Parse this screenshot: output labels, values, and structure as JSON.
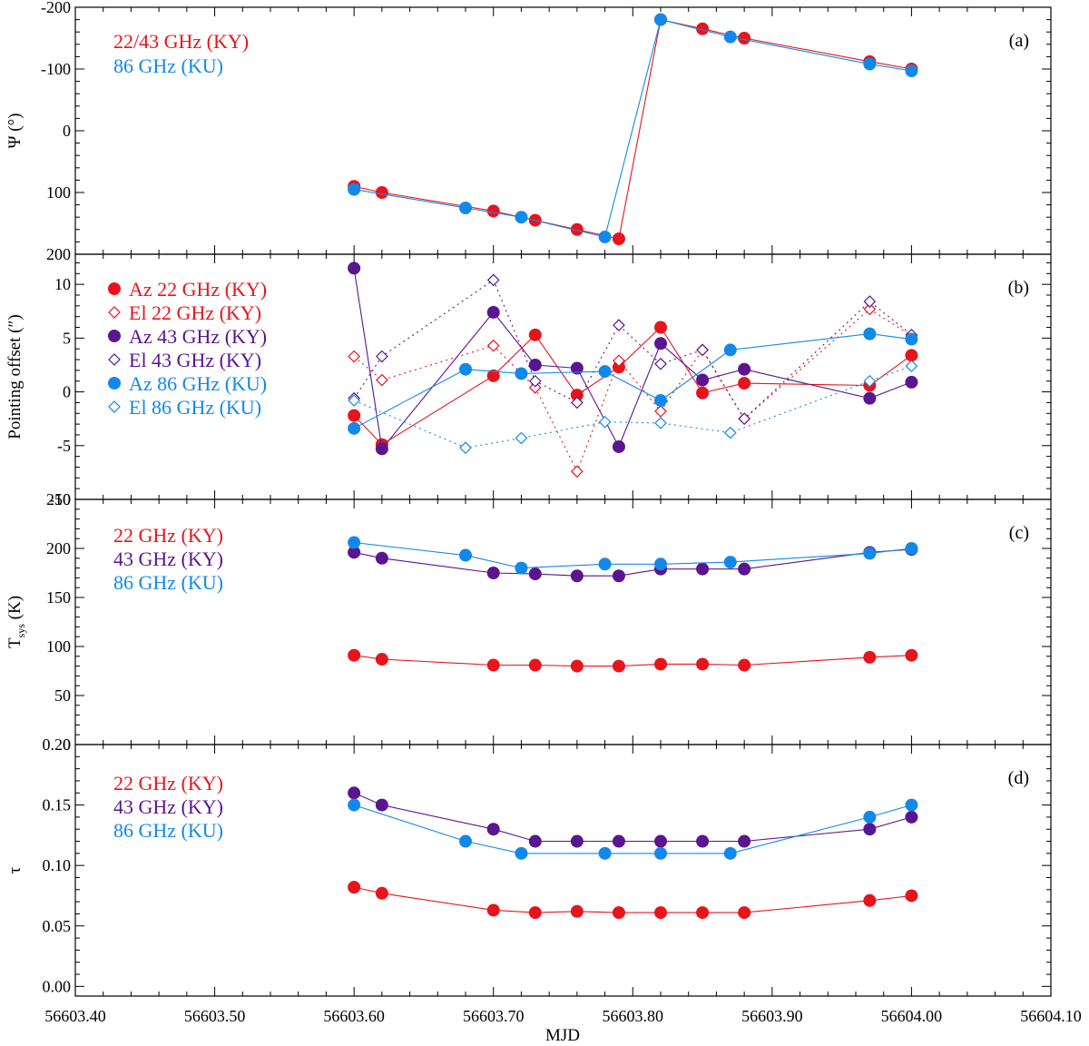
{
  "xaxis": {
    "label": "MJD",
    "ticks": [
      "56603.40",
      "56603.50",
      "56603.60",
      "56603.70",
      "56603.80",
      "56603.90",
      "56604.00",
      "56604.10"
    ],
    "range": [
      56603.4,
      56604.1
    ]
  },
  "chart_data": [
    {
      "type": "line",
      "panel_label": "(a)",
      "ylabel": "Ψ (°)",
      "ylim": [
        -200,
        200
      ],
      "y_inverted": true,
      "yticks": [
        -200,
        -100,
        0,
        100,
        200
      ],
      "ytick_labels": [
        "-200",
        "-100",
        "0",
        "100",
        "200"
      ],
      "legend": [
        "22/43 GHz (KY)",
        "86 GHz (KU)"
      ],
      "series": [
        {
          "name": "22/43 GHz (KY)",
          "color": "#e8141c",
          "marker": "filled-circle",
          "dashed": false,
          "x": [
            56603.6,
            56603.62,
            56603.7,
            56603.73,
            56603.76,
            56603.79,
            56603.82,
            56603.85,
            56603.88,
            56603.97,
            56604.0
          ],
          "y": [
            90,
            100,
            130,
            145,
            160,
            175,
            -180,
            -165,
            -150,
            -112,
            -100
          ]
        },
        {
          "name": "86 GHz (KU)",
          "color": "#1289ea",
          "marker": "filled-circle",
          "dashed": false,
          "x": [
            56603.6,
            56603.68,
            56603.72,
            56603.78,
            56603.82,
            56603.87,
            56603.97,
            56604.0
          ],
          "y": [
            95,
            125,
            140,
            172,
            -180,
            -152,
            -108,
            -97
          ]
        }
      ]
    },
    {
      "type": "line",
      "panel_label": "(b)",
      "ylabel": "Pointing offset (″)",
      "ylim": [
        -10,
        12.8
      ],
      "yticks": [
        -10,
        -5,
        0,
        5,
        10
      ],
      "ytick_labels": [
        "-10",
        "-5",
        "0",
        "5",
        "10"
      ],
      "legend": [
        "Az 22 GHz (KY)",
        "El 22 GHz (KY)",
        "Az 43 GHz (KY)",
        "El 43 GHz (KY)",
        "Az 86 GHz (KU)",
        "El 86 GHz (KU)"
      ],
      "series": [
        {
          "name": "Az 22 GHz (KY)",
          "color": "#e8141c",
          "marker": "filled-circle",
          "dashed": false,
          "x": [
            56603.6,
            56603.62,
            56603.7,
            56603.73,
            56603.76,
            56603.79,
            56603.82,
            56603.85,
            56603.88,
            56603.97,
            56604.0
          ],
          "y": [
            -2.2,
            -4.9,
            1.5,
            5.3,
            -0.3,
            2.3,
            6.0,
            -0.1,
            0.8,
            0.6,
            3.4
          ]
        },
        {
          "name": "El 22 GHz (KY)",
          "color": "#e8141c",
          "marker": "open-diamond",
          "dashed": true,
          "x": [
            56603.6,
            56603.62,
            56603.7,
            56603.73,
            56603.76,
            56603.79,
            56603.82,
            56603.85,
            56603.88,
            56603.97,
            56604.0
          ],
          "y": [
            3.3,
            1.1,
            4.3,
            0.4,
            -7.4,
            2.9,
            -1.8,
            3.9,
            -2.5,
            7.7,
            5.2
          ]
        },
        {
          "name": "Az 43 GHz (KY)",
          "color": "#5a1590",
          "marker": "filled-circle",
          "dashed": false,
          "x": [
            56603.6,
            56603.62,
            56603.7,
            56603.73,
            56603.76,
            56603.79,
            56603.82,
            56603.85,
            56603.88,
            56603.97,
            56604.0
          ],
          "y": [
            11.5,
            -5.3,
            7.4,
            2.5,
            2.2,
            -5.1,
            4.5,
            1.1,
            2.1,
            -0.6,
            0.9
          ]
        },
        {
          "name": "El 43 GHz (KY)",
          "color": "#5a1590",
          "marker": "open-diamond",
          "dashed": true,
          "x": [
            56603.6,
            56603.62,
            56603.7,
            56603.73,
            56603.76,
            56603.79,
            56603.82,
            56603.85,
            56603.88,
            56603.97,
            56604.0
          ],
          "y": [
            -0.6,
            3.3,
            10.4,
            1.0,
            -1.0,
            6.2,
            2.6,
            3.9,
            -2.5,
            8.4,
            5.3
          ]
        },
        {
          "name": "Az 86 GHz (KU)",
          "color": "#1289ea",
          "marker": "filled-circle",
          "dashed": false,
          "x": [
            56603.6,
            56603.68,
            56603.72,
            56603.78,
            56603.82,
            56603.87,
            56603.97,
            56604.0
          ],
          "y": [
            -3.4,
            2.1,
            1.7,
            1.9,
            -0.8,
            3.9,
            5.4,
            4.9
          ]
        },
        {
          "name": "El 86 GHz (KU)",
          "color": "#1289ea",
          "marker": "open-diamond",
          "dashed": true,
          "x": [
            56603.6,
            56603.68,
            56603.72,
            56603.78,
            56603.82,
            56603.87,
            56603.97,
            56604.0
          ],
          "y": [
            -0.8,
            -5.2,
            -4.3,
            -2.8,
            -2.9,
            -3.8,
            1.0,
            2.4
          ]
        }
      ]
    },
    {
      "type": "line",
      "panel_label": "(c)",
      "ylabel": "T",
      "ylabel_sub": "sys",
      "ylabel_suffix": " (K)",
      "ylim": [
        0,
        250
      ],
      "yticks": [
        0,
        50,
        100,
        150,
        200,
        250
      ],
      "ytick_labels": [
        "0",
        "50",
        "100",
        "150",
        "200",
        "250"
      ],
      "legend": [
        "22 GHz (KY)",
        "43 GHz (KY)",
        "86 GHz (KU)"
      ],
      "series": [
        {
          "name": "22 GHz (KY)",
          "color": "#e8141c",
          "marker": "filled-circle",
          "dashed": false,
          "x": [
            56603.6,
            56603.62,
            56603.7,
            56603.73,
            56603.76,
            56603.79,
            56603.82,
            56603.85,
            56603.88,
            56603.97,
            56604.0
          ],
          "y": [
            91,
            87,
            81,
            81,
            80,
            80,
            82,
            82,
            81,
            89,
            91
          ]
        },
        {
          "name": "43 GHz (KY)",
          "color": "#5a1590",
          "marker": "filled-circle",
          "dashed": false,
          "x": [
            56603.6,
            56603.62,
            56603.7,
            56603.73,
            56603.76,
            56603.79,
            56603.82,
            56603.85,
            56603.88,
            56603.97,
            56604.0
          ],
          "y": [
            196,
            190,
            175,
            174,
            172,
            172,
            179,
            179,
            179,
            196,
            199
          ]
        },
        {
          "name": "86 GHz (KU)",
          "color": "#1289ea",
          "marker": "filled-circle",
          "dashed": false,
          "x": [
            56603.6,
            56603.68,
            56603.72,
            56603.78,
            56603.82,
            56603.87,
            56603.97,
            56604.0
          ],
          "y": [
            206,
            193,
            180,
            184,
            184,
            186,
            195,
            200
          ]
        }
      ]
    },
    {
      "type": "line",
      "panel_label": "(d)",
      "ylabel": "τ",
      "ylim": [
        -0.008,
        0.2
      ],
      "yticks": [
        0,
        0.05,
        0.1,
        0.15,
        0.2
      ],
      "ytick_labels": [
        "0.00",
        "0.05",
        "0.10",
        "0.15",
        "0.20"
      ],
      "legend": [
        "22 GHz (KY)",
        "43 GHz (KY)",
        "86 GHz (KU)"
      ],
      "series": [
        {
          "name": "22 GHz (KY)",
          "color": "#e8141c",
          "marker": "filled-circle",
          "dashed": false,
          "x": [
            56603.6,
            56603.62,
            56603.7,
            56603.73,
            56603.76,
            56603.79,
            56603.82,
            56603.85,
            56603.88,
            56603.97,
            56604.0
          ],
          "y": [
            0.082,
            0.077,
            0.063,
            0.061,
            0.062,
            0.061,
            0.061,
            0.061,
            0.061,
            0.071,
            0.075
          ]
        },
        {
          "name": "43 GHz (KY)",
          "color": "#5a1590",
          "marker": "filled-circle",
          "dashed": false,
          "x": [
            56603.6,
            56603.62,
            56603.7,
            56603.73,
            56603.76,
            56603.79,
            56603.82,
            56603.85,
            56603.88,
            56603.97,
            56604.0
          ],
          "y": [
            0.16,
            0.15,
            0.13,
            0.12,
            0.12,
            0.12,
            0.12,
            0.12,
            0.12,
            0.13,
            0.14
          ]
        },
        {
          "name": "86 GHz (KU)",
          "color": "#1289ea",
          "marker": "filled-circle",
          "dashed": false,
          "x": [
            56603.6,
            56603.68,
            56603.72,
            56603.78,
            56603.82,
            56603.87,
            56603.97,
            56604.0
          ],
          "y": [
            0.15,
            0.12,
            0.11,
            0.11,
            0.11,
            0.11,
            0.14,
            0.15
          ]
        }
      ]
    }
  ]
}
